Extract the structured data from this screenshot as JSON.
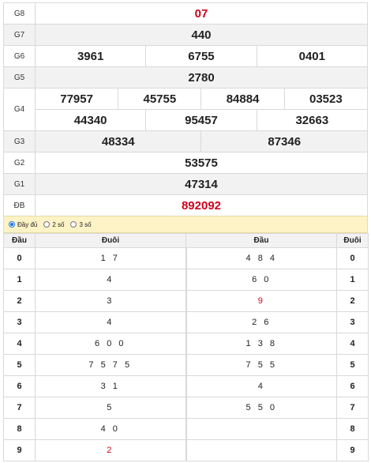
{
  "prizes": {
    "g8": {
      "label": "G8",
      "value": "07"
    },
    "g7": {
      "label": "G7",
      "value": "440"
    },
    "g6": {
      "label": "G6",
      "values": [
        "3961",
        "6755",
        "0401"
      ]
    },
    "g5": {
      "label": "G5",
      "value": "2780"
    },
    "g4": {
      "label": "G4",
      "values": [
        "77957",
        "45755",
        "84884",
        "03523",
        "44340",
        "95457",
        "32663"
      ]
    },
    "g3": {
      "label": "G3",
      "values": [
        "48334",
        "87346"
      ]
    },
    "g2": {
      "label": "G2",
      "value": "53575"
    },
    "g1": {
      "label": "G1",
      "value": "47314"
    },
    "db": {
      "label": "ĐB",
      "value": "892092"
    }
  },
  "options": {
    "full": "Đầy đủ",
    "two": "2 số",
    "three": "3 số",
    "selected": "full"
  },
  "headtail": {
    "headers": {
      "dau": "Đầu",
      "duoi": "Đuôi",
      "dau2": "Đầu",
      "duoi2": "Đuôi"
    },
    "rows": [
      {
        "dau": "0",
        "duoi": "1 7",
        "dau2": "4 8 4",
        "duoi2": "0"
      },
      {
        "dau": "1",
        "duoi": "4",
        "dau2": "6 0",
        "duoi2": "1"
      },
      {
        "dau": "2",
        "duoi": "3",
        "dau2": "9",
        "duoi2": "2"
      },
      {
        "dau": "3",
        "duoi": "4",
        "dau2": "2 6",
        "duoi2": "3"
      },
      {
        "dau": "4",
        "duoi": "6 0 0",
        "dau2": "1 3 8",
        "duoi2": "4"
      },
      {
        "dau": "5",
        "duoi": "7 5 7 5",
        "dau2": "7 5 5",
        "duoi2": "5"
      },
      {
        "dau": "6",
        "duoi": "3 1",
        "dau2": "4",
        "duoi2": "6"
      },
      {
        "dau": "7",
        "duoi": "5",
        "dau2": "5 5 0",
        "duoi2": "7"
      },
      {
        "dau": "8",
        "duoi": "4 0",
        "dau2": "",
        "duoi2": "8"
      },
      {
        "dau": "9",
        "duoi": "2",
        "dau2": "",
        "duoi2": "9"
      }
    ]
  },
  "colors": {
    "special": "#d0021b",
    "option_bar": "#fdf3c6",
    "alt_row": "#f2f2f2"
  }
}
